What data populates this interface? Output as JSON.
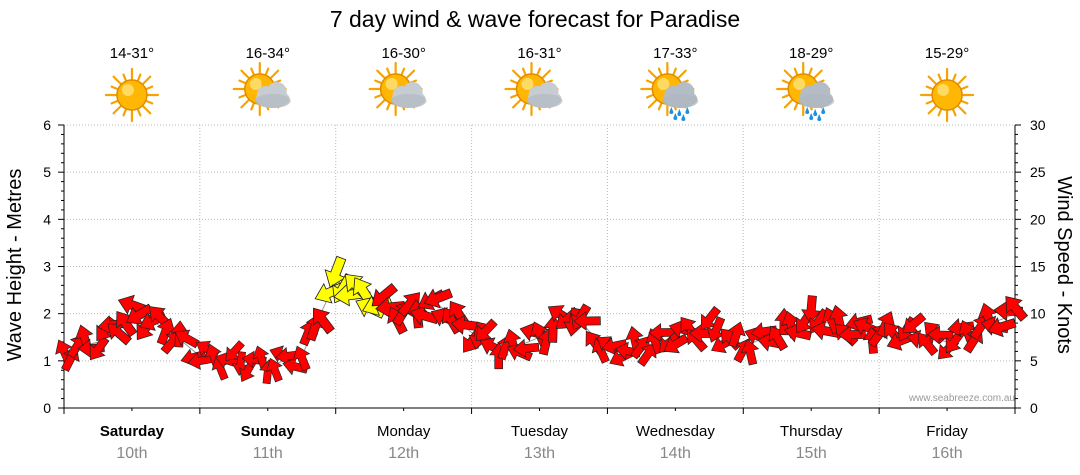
{
  "chart_data": {
    "type": "line",
    "title": "7 day wind & wave forecast for Paradise",
    "ylabel_left": "Wave Height - Metres",
    "ylabel_right": "Wind Speed - Knots",
    "ylim_left": [
      0,
      6
    ],
    "ylim_right": [
      0,
      30
    ],
    "yticks_left": [
      "0",
      "1",
      "2",
      "3",
      "4",
      "5",
      "6"
    ],
    "yticks_right": [
      "0",
      "5",
      "10",
      "15",
      "20",
      "25",
      "30"
    ],
    "grid": true,
    "credit": "www.seabreeze.com.au",
    "days": [
      {
        "name": "Saturday",
        "date": "10th",
        "temp": "14-31°",
        "icon": "sunny-icon",
        "bold": true
      },
      {
        "name": "Sunday",
        "date": "11th",
        "temp": "16-34°",
        "icon": "partly-cloudy-icon",
        "bold": true
      },
      {
        "name": "Monday",
        "date": "12th",
        "temp": "16-30°",
        "icon": "partly-cloudy-icon",
        "bold": false
      },
      {
        "name": "Tuesday",
        "date": "13th",
        "temp": "16-31°",
        "icon": "partly-cloudy-icon",
        "bold": false
      },
      {
        "name": "Wednesday",
        "date": "14th",
        "temp": "17-33°",
        "icon": "rain-shower-icon",
        "bold": false
      },
      {
        "name": "Thursday",
        "date": "15th",
        "temp": "18-29°",
        "icon": "rain-shower-icon",
        "bold": false
      },
      {
        "name": "Friday",
        "date": "16th",
        "temp": "15-29°",
        "icon": "sunny-icon",
        "bold": false
      }
    ],
    "series": [
      {
        "x_days": [
          0.0,
          0.25,
          0.5,
          0.75,
          1.0,
          1.25,
          1.5,
          1.75,
          2.0,
          2.25,
          2.5,
          2.75,
          3.0,
          3.25,
          3.5,
          3.75,
          4.0,
          4.25,
          4.5,
          4.75,
          5.0,
          5.25,
          5.5,
          5.75,
          6.0,
          6.25,
          6.5,
          6.75,
          7.0
        ],
        "values": [
          1.2,
          1.4,
          2.0,
          1.7,
          1.1,
          1.0,
          0.9,
          1.1,
          2.7,
          2.3,
          2.0,
          2.2,
          1.6,
          1.2,
          1.5,
          2.0,
          1.2,
          1.3,
          1.5,
          1.7,
          1.3,
          1.6,
          1.9,
          1.7,
          1.6,
          1.6,
          1.4,
          1.7,
          2.0
        ]
      },
      {
        "x_days": [
          0.0,
          0.25,
          0.5,
          0.75,
          1.0,
          1.25,
          1.5,
          1.75,
          2.0,
          2.25,
          2.5,
          2.75,
          3.0,
          3.25,
          3.5,
          3.75,
          4.0,
          4.25,
          4.5,
          4.75,
          5.0,
          5.25,
          5.5,
          5.75,
          6.0,
          6.25,
          6.5,
          6.75,
          7.0
        ],
        "values": [
          7,
          8,
          11,
          9,
          6,
          5,
          5,
          7,
          14,
          13,
          10,
          11,
          9,
          7,
          8,
          10,
          6,
          7,
          8,
          8,
          7,
          8,
          9,
          9,
          8,
          8,
          7,
          9,
          11
        ]
      }
    ]
  }
}
